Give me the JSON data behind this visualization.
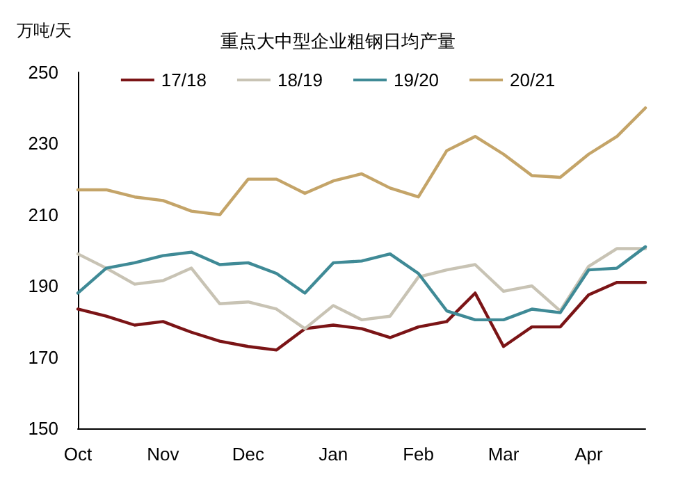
{
  "chart_data": {
    "type": "line",
    "title": "重点大中型企业粗钢日均产量",
    "ylabel": "万吨/天",
    "categories": [
      "Oct",
      null,
      null,
      "Nov",
      null,
      null,
      "Dec",
      null,
      null,
      "Jan",
      null,
      null,
      "Feb",
      null,
      null,
      "Mar",
      null,
      null,
      "Apr",
      null,
      null
    ],
    "series": [
      {
        "name": "17/18",
        "color": "#7b1416",
        "values": [
          183.5,
          181.5,
          179,
          180,
          177,
          174.5,
          173,
          172,
          178,
          179,
          178,
          175.5,
          178.5,
          180,
          188,
          173,
          178.5,
          178.5,
          187.5,
          191,
          191
        ]
      },
      {
        "name": "18/19",
        "color": "#c8c3b4",
        "values": [
          199,
          195,
          190.5,
          191.5,
          195,
          185,
          185.5,
          183.5,
          178,
          184.5,
          180.5,
          181.5,
          192.5,
          194.5,
          196,
          188.5,
          190,
          183,
          195.5,
          200.5,
          200.5
        ]
      },
      {
        "name": "19/20",
        "color": "#3f8a96",
        "values": [
          188,
          195,
          196.5,
          198.5,
          199.5,
          196,
          196.5,
          193.5,
          188,
          196.5,
          197,
          199,
          193.5,
          183,
          180.5,
          180.5,
          183.5,
          182.5,
          194.5,
          195,
          201
        ]
      },
      {
        "name": "20/21",
        "color": "#c4a468",
        "values": [
          217,
          217,
          215,
          214,
          211,
          210,
          220,
          220,
          216,
          219.5,
          221.5,
          217.5,
          215,
          228,
          232,
          227,
          221,
          220.5,
          227,
          232,
          240
        ]
      }
    ],
    "ylim": [
      150,
      250
    ],
    "yticks": [
      150,
      170,
      190,
      210,
      230,
      250
    ],
    "grid": false,
    "legend": "top",
    "marker": "none",
    "line_style": "solid"
  }
}
